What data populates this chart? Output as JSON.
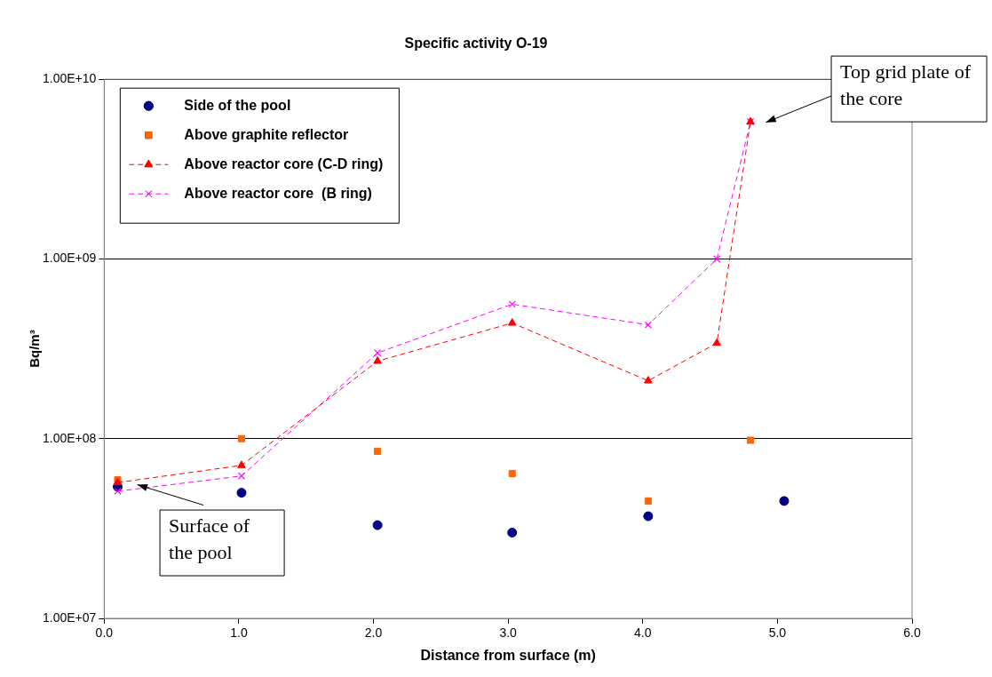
{
  "chart_data": {
    "type": "scatter",
    "title": "Specific activity O-19",
    "xlabel": "Distance from surface (m)",
    "ylabel": "Bq/m³",
    "series": [
      {
        "name": "Side of the pool",
        "type": "scatter",
        "marker": "circle",
        "color": "#000080",
        "x": [
          0.1,
          1.02,
          2.03,
          3.03,
          4.04,
          5.05
        ],
        "values": [
          54000000.0,
          50000000.0,
          33000000.0,
          30000000.0,
          37000000.0,
          45000000.0
        ]
      },
      {
        "name": "Above graphite reflector",
        "type": "scatter",
        "marker": "square",
        "color": "#ff6600",
        "x": [
          0.1,
          1.02,
          2.03,
          3.03,
          4.04,
          4.8
        ],
        "values": [
          59000000.0,
          100000000.0,
          85000000.0,
          64000000.0,
          45000000.0,
          98000000.0
        ]
      },
      {
        "name": "Above reactor core (C-D ring)",
        "type": "line",
        "marker": "triangle",
        "line_style": "dashed",
        "color": "#ff0000",
        "x": [
          0.1,
          1.02,
          2.03,
          3.03,
          4.04,
          4.55,
          4.8
        ],
        "values": [
          57000000.0,
          71000000.0,
          270000000.0,
          440000000.0,
          210000000.0,
          340000000.0,
          5800000000.0
        ]
      },
      {
        "name": "Above reactor core  (B ring)",
        "type": "line",
        "marker": "cross",
        "line_style": "dashed",
        "color": "#ff00ff",
        "x": [
          0.1,
          1.02,
          2.03,
          3.03,
          4.04,
          4.55,
          4.8
        ],
        "values": [
          51000000.0,
          62000000.0,
          300000000.0,
          560000000.0,
          430000000.0,
          1000000000.0,
          5800000000.0
        ]
      }
    ],
    "xlim": [
      0,
      6
    ],
    "xticks": [
      {
        "value": 0,
        "label": "0.0"
      },
      {
        "value": 1,
        "label": "1.0"
      },
      {
        "value": 2,
        "label": "2.0"
      },
      {
        "value": 3,
        "label": "3.0"
      },
      {
        "value": 4,
        "label": "4.0"
      },
      {
        "value": 5,
        "label": "5.0"
      },
      {
        "value": 6,
        "label": "6.0"
      }
    ],
    "ylim": [
      10000000.0,
      10000000000.0
    ],
    "yticks": [
      {
        "value": 10000000.0,
        "label": "1.00E+07"
      },
      {
        "value": 100000000.0,
        "label": "1.00E+08"
      },
      {
        "value": 1000000000.0,
        "label": "1.00E+09"
      },
      {
        "value": 10000000000.0,
        "label": "1.00E+10"
      }
    ],
    "log": "y",
    "grid": "y",
    "legend": "top left",
    "annotations": [
      "Top grid plate of the core",
      "Surface of the pool"
    ]
  }
}
